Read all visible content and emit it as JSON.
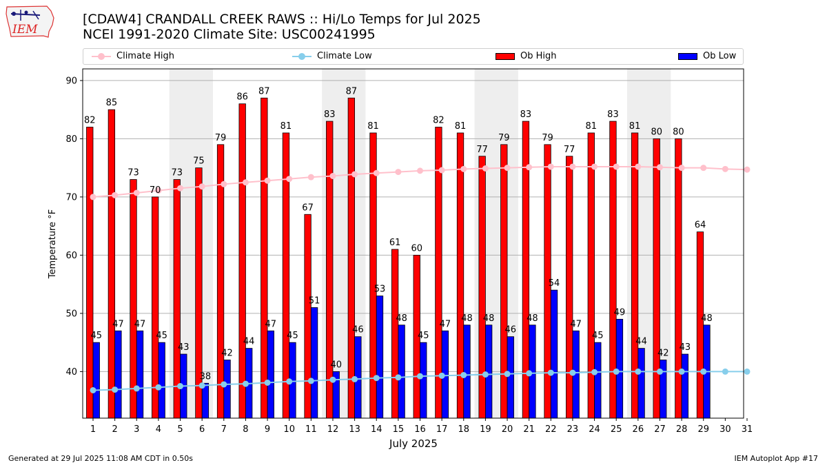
{
  "header": {
    "title_line1": "[CDAW4] CRANDALL CREEK RAWS :: Hi/Lo Temps for Jul 2025",
    "title_line2": "NCEI 1991-2020 Climate Site: USC00241995"
  },
  "logo": {
    "text": "IEM"
  },
  "legend": {
    "climate_high": "Climate High",
    "climate_low": "Climate Low",
    "ob_high": "Ob High",
    "ob_low": "Ob Low"
  },
  "footer": {
    "generated": "Generated at 29 Jul 2025 11:08 AM CDT in 0.50s",
    "app": "IEM Autoplot App #17"
  },
  "colors": {
    "ob_high": "#ff0000",
    "ob_low": "#0000ff",
    "climate_high": "#ffc0cb",
    "climate_low": "#87ceeb",
    "weekend_shade": "#eeeeee",
    "grid": "#b0b0b0"
  },
  "chart_data": {
    "type": "bar",
    "xlabel": "July 2025",
    "ylabel": "Temperature °F",
    "ylim": [
      32,
      92
    ],
    "yticks": [
      40,
      50,
      60,
      70,
      80,
      90
    ],
    "grid": "horizontal",
    "legend_position": "top",
    "categories": [
      "1",
      "2",
      "3",
      "4",
      "5",
      "6",
      "7",
      "8",
      "9",
      "10",
      "11",
      "12",
      "13",
      "14",
      "15",
      "16",
      "17",
      "18",
      "19",
      "20",
      "21",
      "22",
      "23",
      "24",
      "25",
      "26",
      "27",
      "28",
      "29",
      "30",
      "31"
    ],
    "shaded_weekends": [
      [
        5,
        6
      ],
      [
        12,
        13
      ],
      [
        19,
        20
      ],
      [
        26,
        27
      ]
    ],
    "series": [
      {
        "name": "Ob High",
        "kind": "bar",
        "values": [
          82,
          85,
          73,
          70,
          73,
          75,
          79,
          86,
          87,
          81,
          67,
          83,
          87,
          81,
          61,
          60,
          82,
          81,
          77,
          79,
          83,
          79,
          77,
          81,
          83,
          81,
          80,
          80,
          64,
          null,
          null
        ]
      },
      {
        "name": "Ob Low",
        "kind": "bar",
        "values": [
          45,
          47,
          47,
          45,
          43,
          38,
          42,
          44,
          47,
          45,
          51,
          40,
          46,
          53,
          48,
          45,
          47,
          48,
          48,
          46,
          48,
          54,
          47,
          45,
          49,
          44,
          42,
          43,
          48,
          null,
          null
        ]
      },
      {
        "name": "Climate High",
        "kind": "line",
        "values": [
          70.0,
          70.3,
          70.7,
          71.1,
          71.5,
          71.8,
          72.2,
          72.5,
          72.8,
          73.1,
          73.4,
          73.6,
          73.9,
          74.1,
          74.3,
          74.5,
          74.6,
          74.8,
          74.9,
          75.0,
          75.1,
          75.2,
          75.2,
          75.2,
          75.2,
          75.2,
          75.1,
          75.0,
          75.0,
          74.8,
          74.7
        ]
      },
      {
        "name": "Climate Low",
        "kind": "line",
        "values": [
          36.8,
          36.9,
          37.1,
          37.3,
          37.5,
          37.6,
          37.8,
          37.9,
          38.1,
          38.3,
          38.4,
          38.6,
          38.7,
          38.9,
          39.0,
          39.2,
          39.3,
          39.4,
          39.5,
          39.6,
          39.7,
          39.8,
          39.8,
          39.9,
          40.0,
          40.0,
          40.0,
          40.0,
          40.0,
          40.0,
          40.0
        ]
      }
    ]
  }
}
